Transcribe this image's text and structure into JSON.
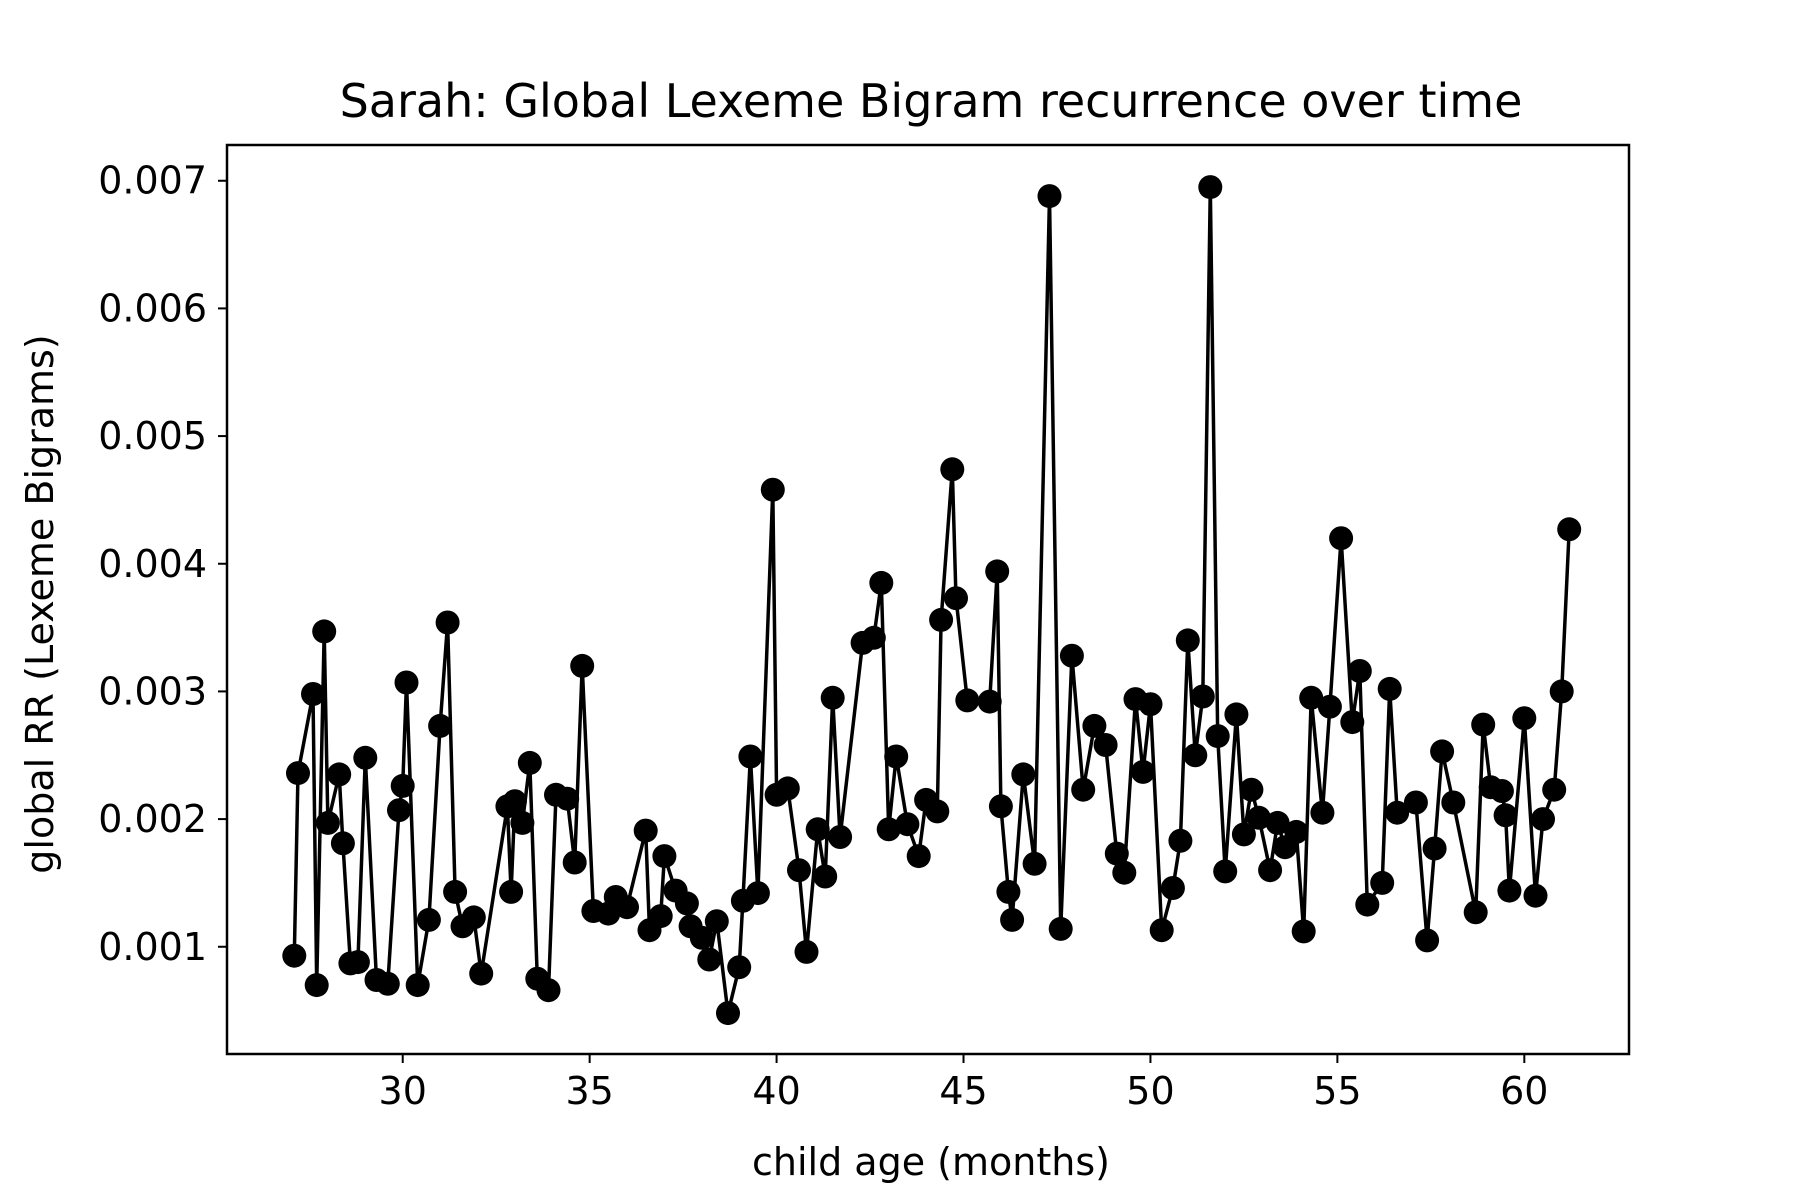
{
  "chart_data": {
    "type": "line",
    "title": "Sarah: Global Lexeme Bigram recurrence over time",
    "xlabel": "child age (months)",
    "ylabel": "global RR (Lexeme Bigrams)",
    "xlim": [
      25.3,
      62.8
    ],
    "ylim": [
      0.00016,
      0.00728
    ],
    "xticks": [
      30,
      35,
      40,
      45,
      50,
      55,
      60
    ],
    "xtick_labels": [
      "30",
      "35",
      "40",
      "45",
      "50",
      "55",
      "60"
    ],
    "yticks": [
      0.001,
      0.002,
      0.003,
      0.004,
      0.005,
      0.006,
      0.007
    ],
    "ytick_labels": [
      "0.001",
      "0.002",
      "0.003",
      "0.004",
      "0.005",
      "0.006",
      "0.007"
    ],
    "grid": false,
    "series": [
      {
        "color": "#000000",
        "marker": "circle",
        "points": [
          [
            27.1,
            0.00093
          ],
          [
            27.2,
            0.00236
          ],
          [
            27.6,
            0.00298
          ],
          [
            27.7,
            0.0007
          ],
          [
            27.9,
            0.00347
          ],
          [
            28.0,
            0.00197
          ],
          [
            28.3,
            0.00235
          ],
          [
            28.4,
            0.00181
          ],
          [
            28.6,
            0.00087
          ],
          [
            28.8,
            0.00088
          ],
          [
            29.0,
            0.00248
          ],
          [
            29.3,
            0.00074
          ],
          [
            29.6,
            0.00071
          ],
          [
            29.9,
            0.00207
          ],
          [
            30.0,
            0.00226
          ],
          [
            30.1,
            0.00307
          ],
          [
            30.4,
            0.0007
          ],
          [
            30.7,
            0.00121
          ],
          [
            31.0,
            0.00273
          ],
          [
            31.2,
            0.00354
          ],
          [
            31.4,
            0.00143
          ],
          [
            31.6,
            0.00116
          ],
          [
            31.9,
            0.00123
          ],
          [
            32.1,
            0.00079
          ],
          [
            32.8,
            0.0021
          ],
          [
            32.9,
            0.00143
          ],
          [
            33.0,
            0.00214
          ],
          [
            33.2,
            0.00197
          ],
          [
            33.4,
            0.00244
          ],
          [
            33.6,
            0.00075
          ],
          [
            33.9,
            0.00066
          ],
          [
            34.1,
            0.00219
          ],
          [
            34.4,
            0.00216
          ],
          [
            34.6,
            0.00166
          ],
          [
            34.8,
            0.0032
          ],
          [
            35.1,
            0.00128
          ],
          [
            35.5,
            0.00126
          ],
          [
            35.7,
            0.00139
          ],
          [
            36.0,
            0.00131
          ],
          [
            36.5,
            0.00191
          ],
          [
            36.6,
            0.00113
          ],
          [
            36.9,
            0.00124
          ],
          [
            37.0,
            0.00171
          ],
          [
            37.3,
            0.00144
          ],
          [
            37.6,
            0.00134
          ],
          [
            37.7,
            0.00116
          ],
          [
            38.0,
            0.00107
          ],
          [
            38.2,
            0.0009
          ],
          [
            38.4,
            0.0012
          ],
          [
            38.7,
            0.00048
          ],
          [
            39.0,
            0.00084
          ],
          [
            39.1,
            0.00136
          ],
          [
            39.3,
            0.00249
          ],
          [
            39.5,
            0.00142
          ],
          [
            39.9,
            0.00458
          ],
          [
            40.0,
            0.00219
          ],
          [
            40.3,
            0.00224
          ],
          [
            40.6,
            0.0016
          ],
          [
            40.8,
            0.00096
          ],
          [
            41.1,
            0.00192
          ],
          [
            41.3,
            0.00155
          ],
          [
            41.5,
            0.00295
          ],
          [
            41.7,
            0.00186
          ],
          [
            42.3,
            0.00338
          ],
          [
            42.6,
            0.00342
          ],
          [
            42.8,
            0.00385
          ],
          [
            43.0,
            0.00192
          ],
          [
            43.2,
            0.00249
          ],
          [
            43.5,
            0.00196
          ],
          [
            43.8,
            0.00171
          ],
          [
            44.0,
            0.00215
          ],
          [
            44.3,
            0.00206
          ],
          [
            44.4,
            0.00356
          ],
          [
            44.7,
            0.00474
          ],
          [
            44.8,
            0.00373
          ],
          [
            45.1,
            0.00293
          ],
          [
            45.7,
            0.00292
          ],
          [
            45.9,
            0.00394
          ],
          [
            46.0,
            0.0021
          ],
          [
            46.2,
            0.00143
          ],
          [
            46.3,
            0.00121
          ],
          [
            46.6,
            0.00235
          ],
          [
            46.9,
            0.00165
          ],
          [
            47.3,
            0.00688
          ],
          [
            47.6,
            0.00114
          ],
          [
            47.9,
            0.00328
          ],
          [
            48.2,
            0.00223
          ],
          [
            48.5,
            0.00273
          ],
          [
            48.8,
            0.00258
          ],
          [
            49.1,
            0.00173
          ],
          [
            49.3,
            0.00158
          ],
          [
            49.6,
            0.00294
          ],
          [
            49.8,
            0.00237
          ],
          [
            50.0,
            0.0029
          ],
          [
            50.3,
            0.00113
          ],
          [
            50.6,
            0.00146
          ],
          [
            50.8,
            0.00183
          ],
          [
            51.0,
            0.0034
          ],
          [
            51.2,
            0.0025
          ],
          [
            51.4,
            0.00296
          ],
          [
            51.6,
            0.00695
          ],
          [
            51.8,
            0.00265
          ],
          [
            52.0,
            0.00159
          ],
          [
            52.3,
            0.00282
          ],
          [
            52.5,
            0.00188
          ],
          [
            52.7,
            0.00223
          ],
          [
            52.9,
            0.00201
          ],
          [
            53.2,
            0.0016
          ],
          [
            53.4,
            0.00197
          ],
          [
            53.6,
            0.00178
          ],
          [
            53.9,
            0.0019
          ],
          [
            54.1,
            0.00112
          ],
          [
            54.3,
            0.00295
          ],
          [
            54.6,
            0.00205
          ],
          [
            54.8,
            0.00288
          ],
          [
            55.1,
            0.0042
          ],
          [
            55.4,
            0.00276
          ],
          [
            55.6,
            0.00316
          ],
          [
            55.8,
            0.00133
          ],
          [
            56.2,
            0.0015
          ],
          [
            56.4,
            0.00302
          ],
          [
            56.6,
            0.00205
          ],
          [
            57.1,
            0.00213
          ],
          [
            57.4,
            0.00105
          ],
          [
            57.6,
            0.00177
          ],
          [
            57.8,
            0.00253
          ],
          [
            58.1,
            0.00213
          ],
          [
            58.7,
            0.00127
          ],
          [
            58.9,
            0.00274
          ],
          [
            59.1,
            0.00225
          ],
          [
            59.4,
            0.00222
          ],
          [
            59.5,
            0.00203
          ],
          [
            59.6,
            0.00144
          ],
          [
            60.0,
            0.00279
          ],
          [
            60.3,
            0.0014
          ],
          [
            60.5,
            0.002
          ],
          [
            60.8,
            0.00223
          ],
          [
            61.0,
            0.003
          ],
          [
            61.2,
            0.00427
          ]
        ]
      }
    ]
  }
}
